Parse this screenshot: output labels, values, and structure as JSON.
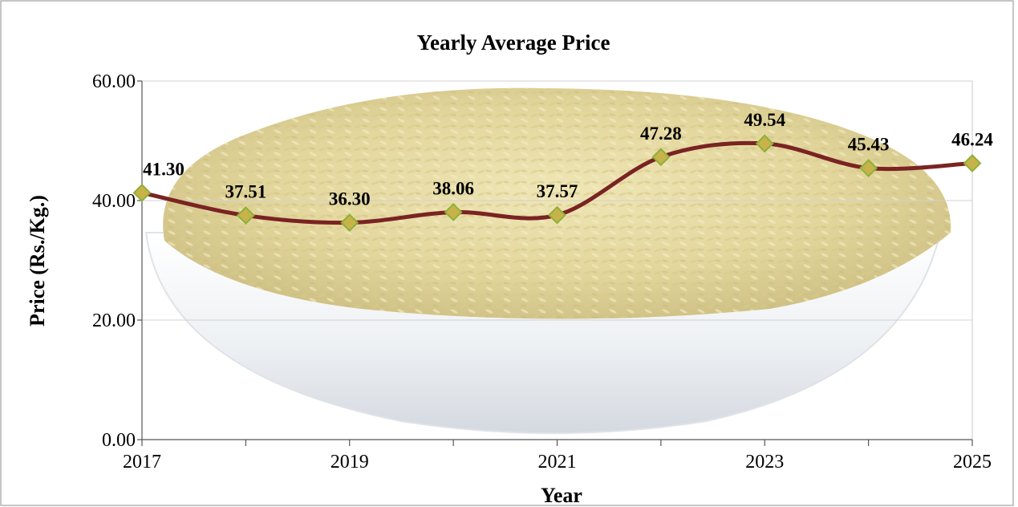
{
  "header_caption": "",
  "chart_data": {
    "type": "line",
    "title": "Yearly Average Price",
    "xlabel": "Year",
    "ylabel": "Price (Rs./Kg.)",
    "x": [
      2017,
      2018,
      2019,
      2020,
      2021,
      2022,
      2023,
      2024,
      2025
    ],
    "x_tick_labels": [
      "2017",
      "",
      "2019",
      "",
      "2021",
      "",
      "2023",
      "",
      "2025"
    ],
    "series": [
      {
        "values": [
          41.3,
          37.51,
          36.3,
          38.06,
          37.57,
          47.28,
          49.54,
          45.43,
          46.24
        ],
        "data_labels": [
          "41.30",
          "37.51",
          "36.30",
          "38.06",
          "37.57",
          "47.28",
          "49.54",
          "45.43",
          "46.24"
        ]
      }
    ],
    "y_ticks": [
      "0.00",
      "20.00",
      "40.00",
      "60.00"
    ],
    "y_tick_values": [
      0,
      20,
      40,
      60
    ],
    "ylim": [
      0,
      60
    ],
    "xlim": [
      2017,
      2025
    ],
    "grid": true,
    "legend": "none",
    "smoothed": true,
    "marker": "diamond",
    "colors": {
      "line": "#7a2323",
      "marker_fill": "#c8b24a",
      "marker_stroke": "#8db03a",
      "rice": "#e6dca6",
      "bowl": "#f4f6f8"
    }
  }
}
